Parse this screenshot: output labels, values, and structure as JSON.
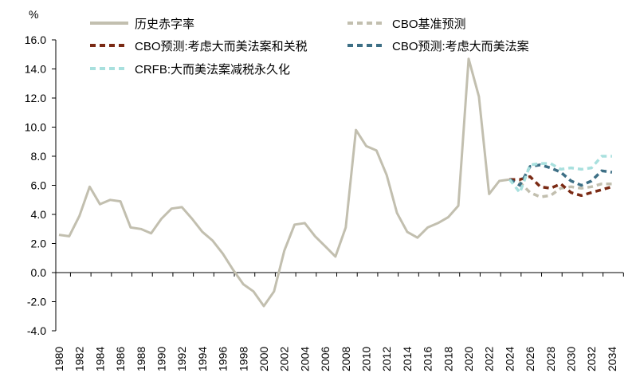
{
  "chart_data": {
    "type": "line",
    "unit": "%",
    "ylim": [
      -4.0,
      16.0
    ],
    "yticks": [
      "-4.0",
      "-2.0",
      "0.0",
      "2.0",
      "4.0",
      "6.0",
      "8.0",
      "10.0",
      "12.0",
      "14.0",
      "16.0"
    ],
    "xlim": [
      1980,
      2034
    ],
    "xticks": [
      "1980",
      "1982",
      "1984",
      "1986",
      "1988",
      "1990",
      "1992",
      "1994",
      "1996",
      "1998",
      "2000",
      "2002",
      "2004",
      "2006",
      "2008",
      "2010",
      "2012",
      "2014",
      "2016",
      "2018",
      "2020",
      "2022",
      "2024",
      "2026",
      "2028",
      "2030",
      "2032",
      "2034"
    ],
    "grid": false,
    "legend_position": "top",
    "series": [
      {
        "name": "历史赤字率",
        "color": "#c2bfaf",
        "style": "solid",
        "x": [
          1980,
          1981,
          1982,
          1983,
          1984,
          1985,
          1986,
          1987,
          1988,
          1989,
          1990,
          1991,
          1992,
          1993,
          1994,
          1995,
          1996,
          1997,
          1998,
          1999,
          2000,
          2001,
          2002,
          2003,
          2004,
          2005,
          2006,
          2007,
          2008,
          2009,
          2010,
          2011,
          2012,
          2013,
          2014,
          2015,
          2016,
          2017,
          2018,
          2019,
          2020,
          2021,
          2022,
          2023,
          2024
        ],
        "y": [
          2.6,
          2.5,
          3.9,
          5.9,
          4.7,
          5.0,
          4.9,
          3.1,
          3.0,
          2.7,
          3.7,
          4.4,
          4.5,
          3.7,
          2.8,
          2.2,
          1.3,
          0.2,
          -0.8,
          -1.3,
          -2.3,
          -1.3,
          1.5,
          3.3,
          3.4,
          2.5,
          1.8,
          1.1,
          3.1,
          9.8,
          8.7,
          8.4,
          6.7,
          4.1,
          2.8,
          2.4,
          3.1,
          3.4,
          3.8,
          4.6,
          14.7,
          12.1,
          5.4,
          6.3,
          6.4
        ]
      },
      {
        "name": "CBO基准预测",
        "color": "#c2bfaf",
        "style": "dashed",
        "x": [
          2024,
          2025,
          2026,
          2027,
          2028,
          2029,
          2030,
          2031,
          2032,
          2033,
          2034
        ],
        "y": [
          6.4,
          6.2,
          5.5,
          5.2,
          5.3,
          5.8,
          5.9,
          5.8,
          5.9,
          6.1,
          6.1
        ]
      },
      {
        "name": "CBO预测:考虑大而美法案和关税",
        "color": "#7a2a14",
        "style": "dashed",
        "x": [
          2024,
          2025,
          2026,
          2027,
          2028,
          2029,
          2030,
          2031,
          2032,
          2033,
          2034
        ],
        "y": [
          6.4,
          6.4,
          6.6,
          5.9,
          5.8,
          6.1,
          5.5,
          5.3,
          5.5,
          5.7,
          5.9
        ]
      },
      {
        "name": "CBO预测:考虑大而美法案",
        "color": "#3d6f85",
        "style": "dashed",
        "x": [
          2024,
          2025,
          2026,
          2027,
          2028,
          2029,
          2030,
          2031,
          2032,
          2033,
          2034
        ],
        "y": [
          6.4,
          6.0,
          7.3,
          7.4,
          7.2,
          6.9,
          6.3,
          6.0,
          6.3,
          7.0,
          6.9
        ]
      },
      {
        "name": "CRFB:大而美法案减税永久化",
        "color": "#a8e0de",
        "style": "dashed",
        "x": [
          2024,
          2025,
          2026,
          2027,
          2028,
          2029,
          2030,
          2031,
          2032,
          2033,
          2034
        ],
        "y": [
          6.4,
          5.5,
          7.4,
          7.5,
          7.5,
          7.1,
          7.2,
          7.1,
          7.2,
          8.0,
          8.0
        ]
      }
    ]
  }
}
